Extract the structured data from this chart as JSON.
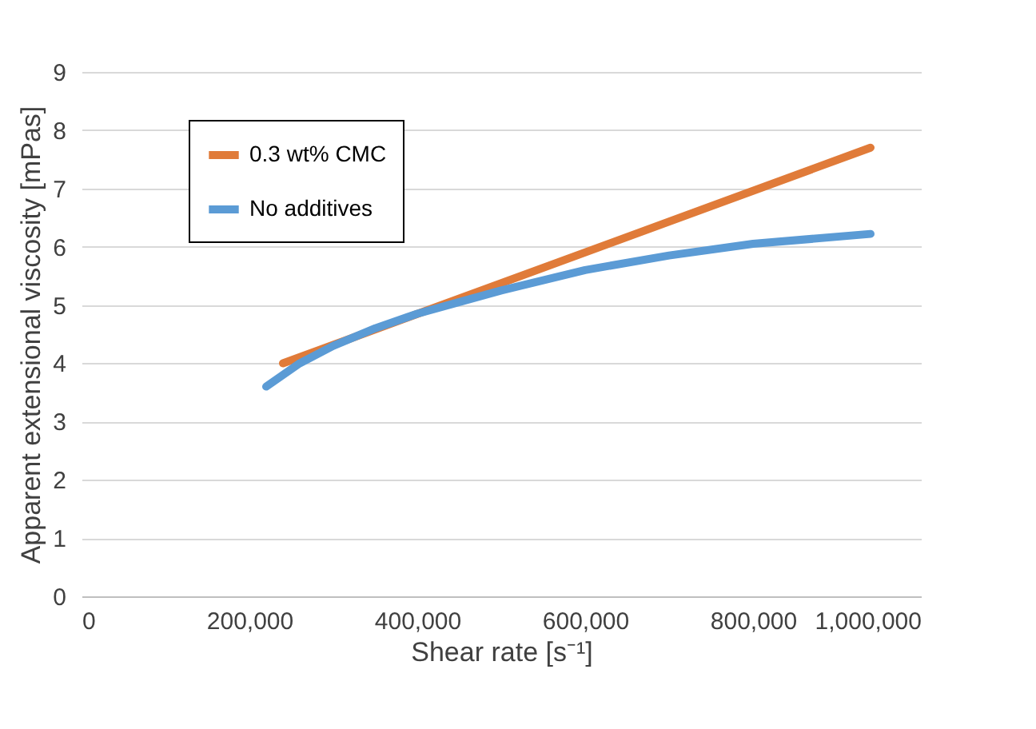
{
  "chart_data": {
    "type": "line",
    "xlabel": "Shear rate [s⁻¹]",
    "ylabel": "Apparent extensional viscosity [mPas]",
    "xlim": [
      0,
      1000000
    ],
    "xticks": [
      {
        "value": 0,
        "label": "0"
      },
      {
        "value": 200000,
        "label": "200,000"
      },
      {
        "value": 400000,
        "label": "400,000"
      },
      {
        "value": 600000,
        "label": "600,000"
      },
      {
        "value": 800000,
        "label": "800,000"
      },
      {
        "value": 1000000,
        "label": "1,000,000"
      }
    ],
    "ylim": [
      0,
      9
    ],
    "yticks": [
      0,
      1,
      2,
      3,
      4,
      5,
      6,
      7,
      8,
      9
    ],
    "grid": "y",
    "legend": "top left",
    "marker": "none",
    "line_style": "solid",
    "series": [
      {
        "name": "0.3 wt% CMC",
        "color": "#e07b39",
        "x": [
          240000,
          940000
        ],
        "values": [
          4.0,
          7.7
        ]
      },
      {
        "name": "No additives",
        "color": "#5b9bd5",
        "x": [
          220000,
          260000,
          300000,
          350000,
          400000,
          450000,
          500000,
          600000,
          700000,
          800000,
          940000
        ],
        "values": [
          3.6,
          4.0,
          4.3,
          4.6,
          4.85,
          5.05,
          5.25,
          5.6,
          5.85,
          6.05,
          6.22
        ]
      }
    ]
  }
}
